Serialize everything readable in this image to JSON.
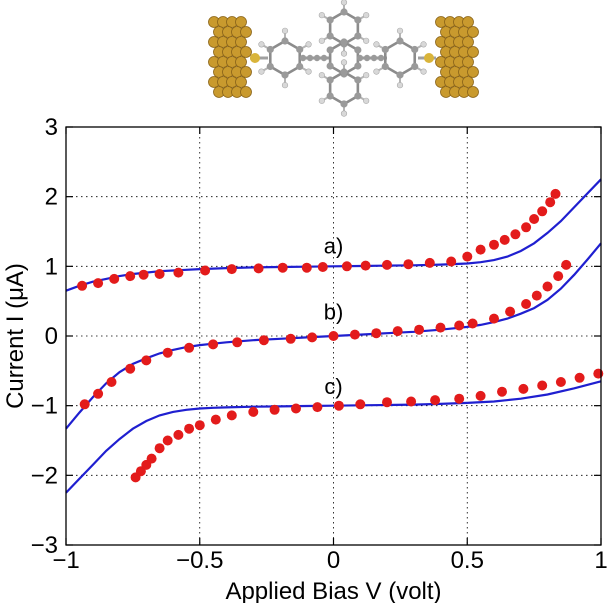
{
  "molecule_image": {
    "icon": "molecular-junction-illustration",
    "gold_color": "#c99a2e",
    "carbon_color": "#9a9a9a",
    "hydrogen_color": "#d8d8d8",
    "sulfur_color": "#d9b43a"
  },
  "chart_data": {
    "type": "line",
    "title": "",
    "xlabel": "Applied Bias V (volt)",
    "ylabel": "Current I (μA)",
    "xlim": [
      -1,
      1
    ],
    "ylim": [
      -3,
      3
    ],
    "xticks": [
      -1,
      -0.5,
      0,
      0.5,
      1
    ],
    "xtick_labels": [
      "−1",
      "−0.5",
      "0",
      "0.5",
      "1"
    ],
    "yticks": [
      -3,
      -2,
      -1,
      0,
      1,
      2,
      3
    ],
    "ytick_labels": [
      "−3",
      "−2",
      "−1",
      "0",
      "1",
      "2",
      "3"
    ],
    "grid": true,
    "grid_style": "dotted",
    "line_color": "#1f1fd0",
    "marker_color": "#e31b1b",
    "annotations": [
      {
        "text": "a)",
        "x": 0.0,
        "y": 1.3
      },
      {
        "text": "b)",
        "x": 0.0,
        "y": 0.35
      },
      {
        "text": "c)",
        "x": 0.0,
        "y": -0.72
      }
    ],
    "series": [
      {
        "label": "a)",
        "kind": "theory-line",
        "offset": 1,
        "x": [
          -1.0,
          -0.95,
          -0.9,
          -0.85,
          -0.8,
          -0.75,
          -0.7,
          -0.65,
          -0.6,
          -0.55,
          -0.5,
          -0.4,
          -0.3,
          -0.2,
          -0.1,
          0.0,
          0.1,
          0.2,
          0.3,
          0.4,
          0.5,
          0.55,
          0.6,
          0.65,
          0.7,
          0.75,
          0.8,
          0.85,
          0.9,
          0.95,
          1.0
        ],
        "y": [
          0.65,
          0.72,
          0.78,
          0.82,
          0.86,
          0.89,
          0.91,
          0.93,
          0.94,
          0.95,
          0.96,
          0.975,
          0.985,
          0.99,
          0.995,
          1.0,
          1.005,
          1.01,
          1.015,
          1.025,
          1.04,
          1.06,
          1.09,
          1.14,
          1.22,
          1.33,
          1.48,
          1.65,
          1.85,
          2.05,
          2.25
        ]
      },
      {
        "label": "b)",
        "kind": "theory-line",
        "offset": 0,
        "x": [
          -1.0,
          -0.95,
          -0.9,
          -0.85,
          -0.8,
          -0.75,
          -0.7,
          -0.65,
          -0.6,
          -0.55,
          -0.5,
          -0.45,
          -0.4,
          -0.3,
          -0.2,
          -0.1,
          0.0,
          0.1,
          0.2,
          0.3,
          0.4,
          0.45,
          0.5,
          0.55,
          0.6,
          0.65,
          0.7,
          0.75,
          0.8,
          0.85,
          0.9,
          0.95,
          1.0
        ],
        "y": [
          -1.33,
          -1.1,
          -0.88,
          -0.68,
          -0.52,
          -0.4,
          -0.32,
          -0.25,
          -0.2,
          -0.16,
          -0.13,
          -0.11,
          -0.09,
          -0.06,
          -0.04,
          -0.02,
          0.0,
          0.02,
          0.04,
          0.06,
          0.09,
          0.11,
          0.13,
          0.16,
          0.2,
          0.25,
          0.32,
          0.4,
          0.52,
          0.68,
          0.88,
          1.1,
          1.33
        ]
      },
      {
        "label": "c)",
        "kind": "theory-line",
        "offset": -1,
        "x": [
          -1.0,
          -0.95,
          -0.9,
          -0.85,
          -0.8,
          -0.75,
          -0.7,
          -0.65,
          -0.6,
          -0.55,
          -0.5,
          -0.45,
          -0.4,
          -0.3,
          -0.2,
          -0.1,
          0.0,
          0.1,
          0.2,
          0.3,
          0.4,
          0.5,
          0.6,
          0.7,
          0.8,
          0.9,
          1.0
        ],
        "y": [
          -2.25,
          -2.05,
          -1.85,
          -1.65,
          -1.48,
          -1.33,
          -1.22,
          -1.14,
          -1.09,
          -1.06,
          -1.04,
          -1.03,
          -1.025,
          -1.015,
          -1.01,
          -1.005,
          -1.0,
          -0.995,
          -0.99,
          -0.985,
          -0.975,
          -0.96,
          -0.94,
          -0.9,
          -0.84,
          -0.75,
          -0.65
        ]
      },
      {
        "label": "a)",
        "kind": "experiment-points",
        "x": [
          -0.94,
          -0.88,
          -0.82,
          -0.76,
          -0.71,
          -0.65,
          -0.58,
          -0.48,
          -0.38,
          -0.28,
          -0.19,
          -0.1,
          -0.04,
          0.05,
          0.12,
          0.2,
          0.28,
          0.36,
          0.44,
          0.5,
          0.55,
          0.6,
          0.64,
          0.68,
          0.72,
          0.75,
          0.78,
          0.81,
          0.83
        ],
        "y": [
          0.72,
          0.76,
          0.82,
          0.86,
          0.88,
          0.89,
          0.91,
          0.94,
          0.96,
          0.97,
          0.98,
          0.98,
          0.99,
          1.0,
          1.01,
          1.02,
          1.03,
          1.05,
          1.07,
          1.14,
          1.24,
          1.31,
          1.38,
          1.46,
          1.56,
          1.68,
          1.79,
          1.92,
          2.04
        ]
      },
      {
        "label": "b)",
        "kind": "experiment-points",
        "x": [
          -0.93,
          -0.88,
          -0.83,
          -0.76,
          -0.7,
          -0.62,
          -0.54,
          -0.45,
          -0.36,
          -0.26,
          -0.16,
          -0.08,
          0.0,
          0.08,
          0.16,
          0.24,
          0.32,
          0.4,
          0.47,
          0.52,
          0.6,
          0.66,
          0.72,
          0.76,
          0.8,
          0.84,
          0.87
        ],
        "y": [
          -0.98,
          -0.83,
          -0.66,
          -0.47,
          -0.35,
          -0.24,
          -0.17,
          -0.12,
          -0.09,
          -0.06,
          -0.04,
          -0.02,
          0.0,
          0.02,
          0.04,
          0.07,
          0.09,
          0.12,
          0.15,
          0.18,
          0.25,
          0.35,
          0.46,
          0.58,
          0.71,
          0.86,
          1.02
        ]
      },
      {
        "label": "c)",
        "kind": "experiment-points",
        "x": [
          -0.74,
          -0.72,
          -0.7,
          -0.68,
          -0.65,
          -0.62,
          -0.58,
          -0.54,
          -0.5,
          -0.44,
          -0.38,
          -0.3,
          -0.22,
          -0.14,
          -0.06,
          0.02,
          0.1,
          0.2,
          0.29,
          0.38,
          0.47,
          0.55,
          0.63,
          0.71,
          0.78,
          0.85,
          0.92,
          0.99
        ],
        "y": [
          -2.03,
          -1.94,
          -1.85,
          -1.76,
          -1.61,
          -1.5,
          -1.42,
          -1.33,
          -1.28,
          -1.2,
          -1.14,
          -1.09,
          -1.06,
          -1.04,
          -1.02,
          -1.0,
          -0.98,
          -0.95,
          -0.94,
          -0.92,
          -0.9,
          -0.86,
          -0.8,
          -0.76,
          -0.71,
          -0.66,
          -0.6,
          -0.54
        ]
      }
    ]
  }
}
